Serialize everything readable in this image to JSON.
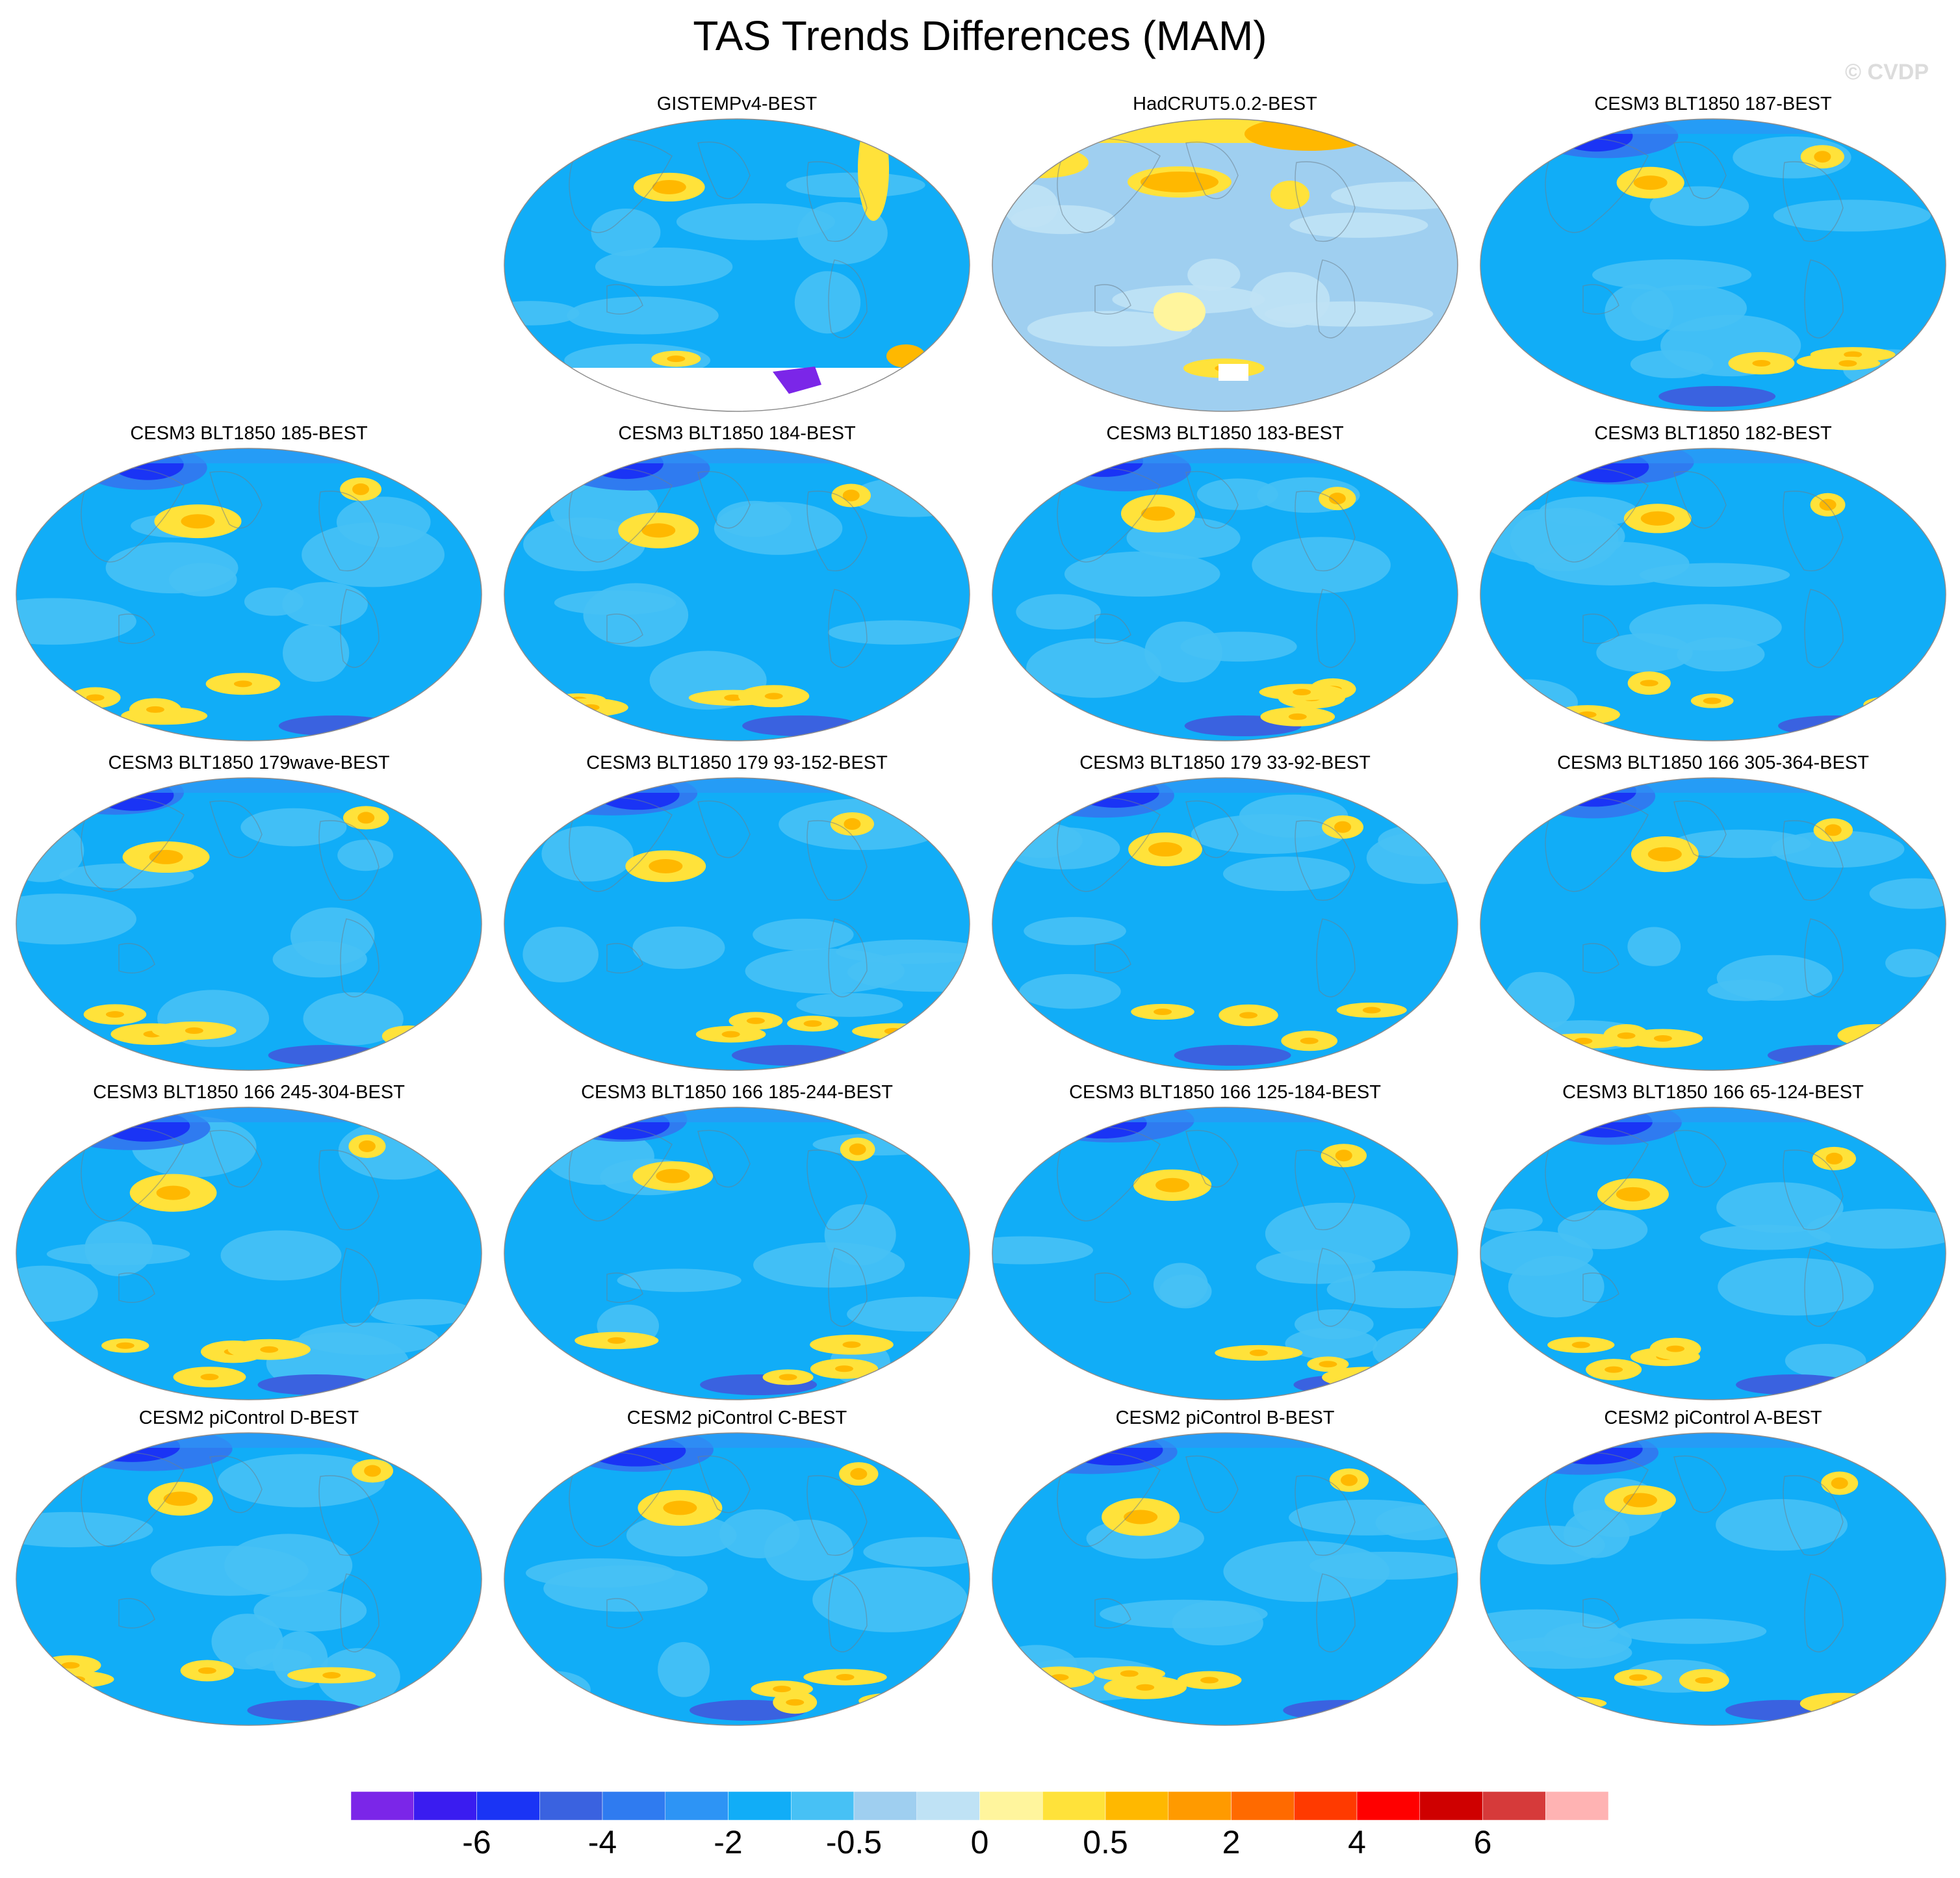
{
  "figure": {
    "title": "TAS Trends Differences (MAM)",
    "watermark": "© CVDP"
  },
  "panels": [
    {
      "title": "GISTEMPv4-BEST",
      "variant": "gistemp"
    },
    {
      "title": "HadCRUT5.0.2-BEST",
      "variant": "hadcrut"
    },
    {
      "title": "CESM3 BLT1850 187-BEST",
      "variant": "model"
    },
    {
      "title": "CESM3 BLT1850 185-BEST",
      "variant": "model"
    },
    {
      "title": "CESM3 BLT1850 184-BEST",
      "variant": "model"
    },
    {
      "title": "CESM3 BLT1850 183-BEST",
      "variant": "model"
    },
    {
      "title": "CESM3 BLT1850 182-BEST",
      "variant": "model"
    },
    {
      "title": "CESM3 BLT1850 179wave-BEST",
      "variant": "model"
    },
    {
      "title": "CESM3 BLT1850 179 93-152-BEST",
      "variant": "model"
    },
    {
      "title": "CESM3 BLT1850 179 33-92-BEST",
      "variant": "model"
    },
    {
      "title": "CESM3 BLT1850 166 305-364-BEST",
      "variant": "model"
    },
    {
      "title": "CESM3 BLT1850 166 245-304-BEST",
      "variant": "model"
    },
    {
      "title": "CESM3 BLT1850 166 185-244-BEST",
      "variant": "model"
    },
    {
      "title": "CESM3 BLT1850 166 125-184-BEST",
      "variant": "model"
    },
    {
      "title": "CESM3 BLT1850 166 65-124-BEST",
      "variant": "model"
    },
    {
      "title": "CESM2 piControl D-BEST",
      "variant": "model"
    },
    {
      "title": "CESM2 piControl C-BEST",
      "variant": "model"
    },
    {
      "title": "CESM2 piControl B-BEST",
      "variant": "model"
    },
    {
      "title": "CESM2 piControl A-BEST",
      "variant": "model"
    }
  ],
  "colorbar": {
    "colors": [
      "#7b26e8",
      "#3a1cf0",
      "#1a34f5",
      "#3a62e0",
      "#2f7bf0",
      "#2d94f5",
      "#11adf7",
      "#47c1f5",
      "#9fcff0",
      "#bfe2f5",
      "#fff59d",
      "#ffe23a",
      "#ffb800",
      "#ff9a00",
      "#ff6a00",
      "#ff3a00",
      "#ff0000",
      "#cf0000",
      "#d63a3a",
      "#ffb3b3"
    ],
    "labels": [
      {
        "text": "-6",
        "boundary": 2
      },
      {
        "text": "-4",
        "boundary": 4
      },
      {
        "text": "-2",
        "boundary": 6
      },
      {
        "text": "-0.5",
        "boundary": 8
      },
      {
        "text": "0",
        "boundary": 10
      },
      {
        "text": "0.5",
        "boundary": 12
      },
      {
        "text": "2",
        "boundary": 14
      },
      {
        "text": "4",
        "boundary": 16
      },
      {
        "text": "6",
        "boundary": 18
      }
    ]
  }
}
